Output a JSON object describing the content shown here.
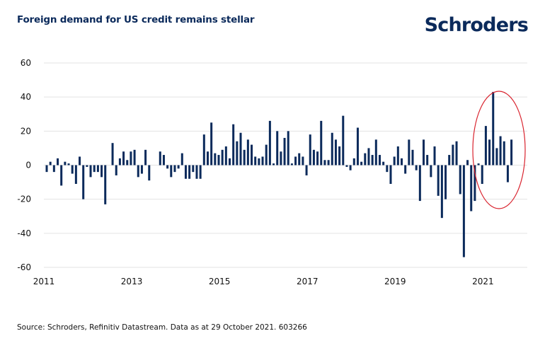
{
  "header": {
    "title": "Foreign demand for US credit remains stellar",
    "logo": "Schroders"
  },
  "footer": {
    "source": "Source: Schroders, Refinitiv Datastream. Data as at 29 October 2021. 603266"
  },
  "colors": {
    "bar": "#0b2a5b",
    "grid": "#e3e3e3",
    "highlight": "#d9232e",
    "title": "#0b2a5b"
  },
  "chart_data": {
    "type": "bar",
    "title": "Foreign demand for US credit remains stellar",
    "xlabel": "",
    "ylabel": "",
    "ylim": [
      -60,
      60
    ],
    "yticks": [
      60,
      40,
      20,
      0,
      -20,
      -40,
      -60
    ],
    "xticks": [
      "2011",
      "2013",
      "2015",
      "2017",
      "2019",
      "2021"
    ],
    "x_start": "2011-01",
    "frequency": "monthly",
    "grid": true,
    "annotation": "Red ellipse highlighting 2021 inflows",
    "annotation_range": [
      "2021-01",
      "2021-10"
    ],
    "values": [
      -4,
      2,
      -4,
      4,
      -12,
      2,
      1,
      -5,
      -11,
      5,
      -20,
      -1,
      -7,
      -4,
      -4,
      -7,
      -23,
      0,
      13,
      -6,
      4,
      8,
      3,
      8,
      9,
      -7,
      -5,
      9,
      -9,
      0,
      0,
      8,
      6,
      -2,
      -7,
      -4,
      -2,
      7,
      -8,
      -8,
      -4,
      -8,
      -8,
      18,
      8,
      25,
      7,
      6,
      9,
      11,
      4,
      24,
      14,
      19,
      9,
      15,
      12,
      5,
      4,
      5,
      12,
      26,
      1,
      20,
      8,
      16,
      20,
      1,
      5,
      7,
      5,
      -6,
      18,
      9,
      8,
      26,
      3,
      3,
      19,
      15,
      11,
      29,
      -1,
      -3,
      4,
      22,
      2,
      7,
      10,
      6,
      15,
      6,
      2,
      -4,
      -11,
      5,
      11,
      4,
      -5,
      15,
      9,
      -3,
      -21,
      15,
      6,
      -7,
      11,
      -18,
      -31,
      -20,
      6,
      12,
      14,
      -17,
      -54,
      3,
      -27,
      -21,
      1,
      -11,
      23,
      15,
      43,
      10,
      17,
      14,
      -10,
      15
    ]
  }
}
